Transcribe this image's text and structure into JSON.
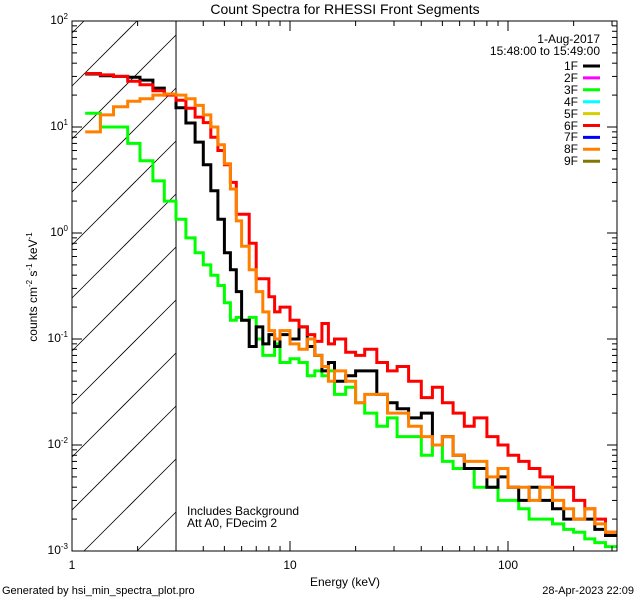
{
  "chart_data": {
    "type": "line",
    "title": "Count Spectra for RHESSI Front Segments",
    "xlabel": "Energy (keV)",
    "ylabel": {
      "base": "counts cm",
      "e1": "-2",
      "mid1": " s",
      "e2": "-1",
      "mid2": " keV",
      "e3": "-1"
    },
    "xscale": "log",
    "yscale": "log",
    "xlim": [
      1,
      316.2
    ],
    "ylim": [
      0.001,
      100
    ],
    "xticks": [
      {
        "value": 1,
        "label": "1"
      },
      {
        "value": 10,
        "label": "10"
      },
      {
        "value": 100,
        "label": "100"
      }
    ],
    "yticks": [
      {
        "value": 100,
        "base": "10",
        "exp": "2"
      },
      {
        "value": 10,
        "base": "10",
        "exp": "1"
      },
      {
        "value": 1,
        "base": "10",
        "exp": "0"
      },
      {
        "value": 0.1,
        "base": "10",
        "exp": "-1"
      },
      {
        "value": 0.01,
        "base": "10",
        "exp": "-2"
      },
      {
        "value": 0.001,
        "base": "10",
        "exp": "-3"
      }
    ],
    "date": "1-Aug-2017",
    "time_range": "15:48:00 to 15:49:00",
    "background_marker_keV": 3,
    "annotations": [
      "Includes Background",
      "Att A0, FDecim 2"
    ],
    "legend": [
      {
        "label": "1F",
        "color": "#000000"
      },
      {
        "label": "2F",
        "color": "#ff00ff"
      },
      {
        "label": "3F",
        "color": "#00ff00"
      },
      {
        "label": "4F",
        "color": "#00ffff"
      },
      {
        "label": "5F",
        "color": "#d4d000"
      },
      {
        "label": "6F",
        "color": "#ff0000"
      },
      {
        "label": "7F",
        "color": "#0000ff"
      },
      {
        "label": "8F",
        "color": "#ff8000"
      },
      {
        "label": "9F",
        "color": "#807800"
      }
    ],
    "legend_position": "top-right",
    "x": [
      1.15,
      1.35,
      1.55,
      1.8,
      2.05,
      2.35,
      2.65,
      3.0,
      3.33,
      3.67,
      4.0,
      4.33,
      4.67,
      5.0,
      5.33,
      5.67,
      6.0,
      6.5,
      7,
      7.5,
      8,
      8.5,
      9,
      10,
      11,
      12,
      13,
      14,
      15,
      16,
      18,
      20,
      22,
      25,
      28,
      31,
      35,
      40,
      45,
      50,
      56,
      63,
      70,
      80,
      90,
      100,
      112,
      125,
      140,
      160,
      180,
      200,
      225,
      250,
      280
    ],
    "x_end": 316,
    "series": [
      {
        "name": "3F",
        "color": "#00ff00",
        "values": [
          13.5,
          10,
          10,
          7,
          4.8,
          3.1,
          2.0,
          1.35,
          0.9,
          0.65,
          0.5,
          0.4,
          0.32,
          0.22,
          0.15,
          0.16,
          0.15,
          0.16,
          0.1,
          0.07,
          0.07,
          0.09,
          0.06,
          0.065,
          0.06,
          0.045,
          0.05,
          0.045,
          0.05,
          0.03,
          0.035,
          0.025,
          0.02,
          0.015,
          0.018,
          0.012,
          0.012,
          0.008,
          0.01,
          0.007,
          0.006,
          0.006,
          0.004,
          0.004,
          0.003,
          0.003,
          0.0025,
          0.002,
          0.002,
          0.0018,
          0.0016,
          0.0015,
          0.0013,
          0.0012,
          0.0011
        ]
      },
      {
        "name": "1F",
        "color": "#000000",
        "values": [
          31.6,
          30.5,
          30,
          29.5,
          27.7,
          23.3,
          20.5,
          15.2,
          10.9,
          7.2,
          4.4,
          2.5,
          1.35,
          0.65,
          0.45,
          0.28,
          0.15,
          0.085,
          0.13,
          0.09,
          0.11,
          0.085,
          0.11,
          0.1,
          0.13,
          0.085,
          0.07,
          0.05,
          0.06,
          0.04,
          0.045,
          0.05,
          0.05,
          0.03,
          0.025,
          0.022,
          0.018,
          0.02,
          0.01,
          0.012,
          0.008,
          0.006,
          0.006,
          0.004,
          0.005,
          0.004,
          0.003,
          0.004,
          0.003,
          0.0025,
          0.002,
          0.002,
          0.002,
          0.0016,
          0.0014
        ]
      },
      {
        "name": "6F",
        "color": "#ff0000",
        "values": [
          32,
          31,
          30,
          27,
          25,
          22,
          20,
          17.9,
          15,
          12.4,
          11,
          8,
          6,
          4.4,
          3,
          1.5,
          1.5,
          0.8,
          0.37,
          0.37,
          0.25,
          0.18,
          0.2,
          0.15,
          0.13,
          0.11,
          0.095,
          0.14,
          0.09,
          0.1,
          0.075,
          0.07,
          0.08,
          0.06,
          0.05,
          0.055,
          0.04,
          0.028,
          0.035,
          0.025,
          0.02,
          0.015,
          0.018,
          0.012,
          0.01,
          0.008,
          0.007,
          0.006,
          0.005,
          0.004,
          0.004,
          0.003,
          0.0025,
          0.002,
          0.0015
        ]
      },
      {
        "name": "8F",
        "color": "#ff8000",
        "values": [
          9,
          13,
          15.5,
          17.5,
          18.5,
          20,
          20.5,
          20,
          18.5,
          16,
          13,
          10,
          6.8,
          4.5,
          2.6,
          1.3,
          0.75,
          0.45,
          0.28,
          0.18,
          0.12,
          0.1,
          0.12,
          0.09,
          0.08,
          0.1,
          0.07,
          0.055,
          0.04,
          0.05,
          0.04,
          0.025,
          0.03,
          0.03,
          0.02,
          0.02,
          0.015,
          0.012,
          0.01,
          0.012,
          0.008,
          0.007,
          0.007,
          0.005,
          0.006,
          0.004,
          0.004,
          0.003,
          0.004,
          0.003,
          0.0025,
          0.002,
          0.0025,
          0.0018,
          0.0015
        ]
      }
    ]
  },
  "footer": {
    "left": "Generated by hsi_min_spectra_plot.pro",
    "right": "28-Apr-2023 22:09"
  }
}
